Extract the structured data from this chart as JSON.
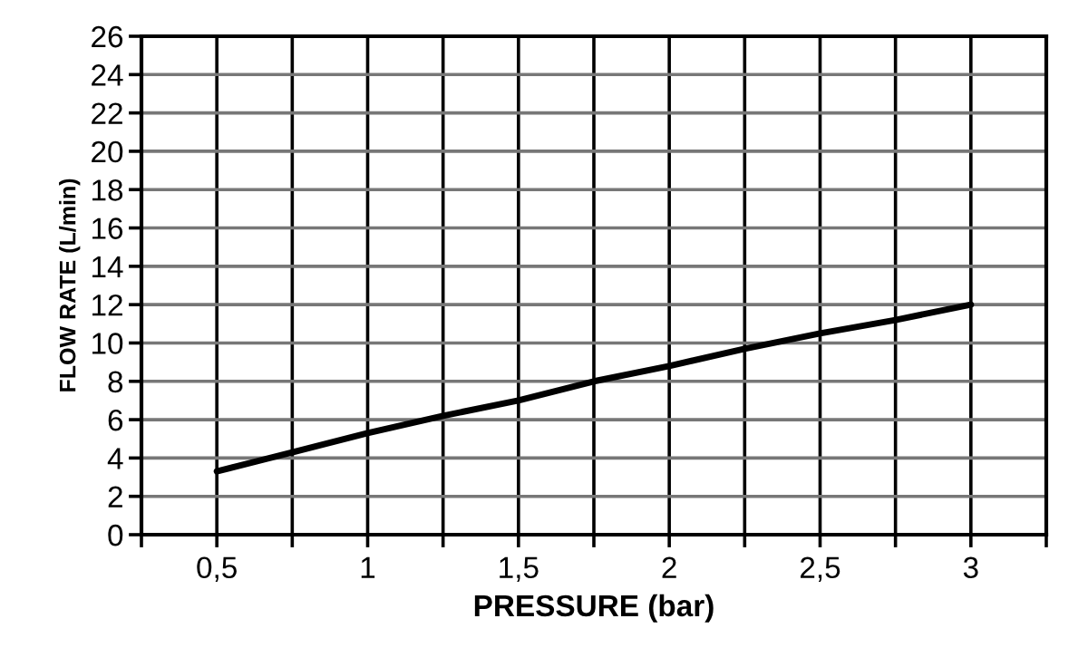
{
  "chart_data": {
    "type": "line",
    "xlabel": "PRESSURE (bar)",
    "ylabel": "FLOW RATE (L/min)",
    "x": [
      0.5,
      0.75,
      1,
      1.25,
      1.5,
      1.75,
      2,
      2.25,
      2.5,
      2.75,
      3
    ],
    "series": [
      {
        "color": "#000000",
        "values": [
          3.3,
          4.3,
          5.3,
          6.2,
          7.0,
          8.0,
          8.8,
          9.7,
          10.5,
          11.2,
          12.0
        ]
      }
    ],
    "xlim": [
      0.25,
      3.25
    ],
    "xticks": [
      {
        "value": 0.25,
        "label": null
      },
      {
        "value": 0.5,
        "label": "0,5"
      },
      {
        "value": 0.75,
        "label": null
      },
      {
        "value": 1,
        "label": "1"
      },
      {
        "value": 1.25,
        "label": null
      },
      {
        "value": 1.5,
        "label": "1,5"
      },
      {
        "value": 1.75,
        "label": null
      },
      {
        "value": 2,
        "label": "2"
      },
      {
        "value": 2.25,
        "label": null
      },
      {
        "value": 2.5,
        "label": "2,5"
      },
      {
        "value": 2.75,
        "label": null
      },
      {
        "value": 3,
        "label": "3"
      },
      {
        "value": 3.25,
        "label": null
      }
    ],
    "ylim": [
      0,
      26
    ],
    "yticks": [
      0,
      2,
      4,
      6,
      8,
      10,
      12,
      14,
      16,
      18,
      20,
      22,
      24,
      26
    ],
    "grid": true,
    "marker": "none",
    "line_style": "solid"
  }
}
